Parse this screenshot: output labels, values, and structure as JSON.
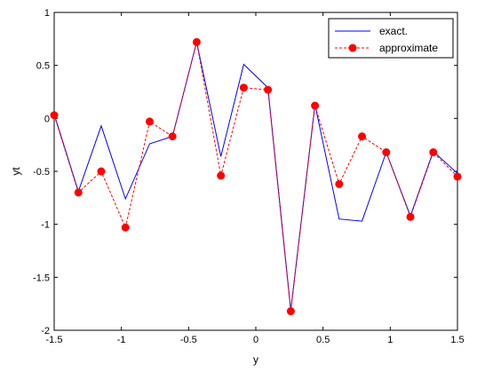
{
  "chart_data": {
    "type": "line",
    "xlabel": "y",
    "ylabel": "yt",
    "xlim": [
      -1.5,
      1.5
    ],
    "ylim": [
      -2,
      1
    ],
    "xticks": [
      -1.5,
      -1,
      -0.5,
      0,
      0.5,
      1,
      1.5
    ],
    "xtick_labels": [
      "-1.5",
      "-1",
      "-0.5",
      "0",
      "0.5",
      "1",
      "1.5"
    ],
    "yticks": [
      -2,
      -1.5,
      -1,
      -0.5,
      0,
      0.5,
      1
    ],
    "ytick_labels": [
      "-2",
      "-1.5",
      "-1",
      "-0.5",
      "0",
      "0.5",
      "1"
    ],
    "grid": false,
    "legend_position": "top-right",
    "series": [
      {
        "name": "exact.",
        "color": "#0000ff",
        "style": "solid",
        "marker": "none",
        "x": [
          -1.5,
          -1.32,
          -1.15,
          -0.97,
          -0.79,
          -0.62,
          -0.44,
          -0.26,
          -0.09,
          0.09,
          0.26,
          0.44,
          0.62,
          0.79,
          0.97,
          1.15,
          1.32,
          1.5
        ],
        "y": [
          0.04,
          -0.69,
          -0.07,
          -0.76,
          -0.24,
          -0.17,
          0.72,
          -0.36,
          0.51,
          0.29,
          -1.81,
          0.13,
          -0.95,
          -0.97,
          -0.32,
          -0.92,
          -0.31,
          -0.52
        ]
      },
      {
        "name": "approximate",
        "color": "#ff0000",
        "style": "dashed",
        "marker": "circle",
        "x": [
          -1.5,
          -1.32,
          -1.15,
          -0.97,
          -0.79,
          -0.62,
          -0.44,
          -0.26,
          -0.09,
          0.09,
          0.26,
          0.44,
          0.62,
          0.79,
          0.97,
          1.15,
          1.32,
          1.5
        ],
        "y": [
          0.03,
          -0.7,
          -0.5,
          -1.03,
          -0.03,
          -0.17,
          0.72,
          -0.54,
          0.29,
          0.27,
          -1.82,
          0.12,
          -0.62,
          -0.17,
          -0.32,
          -0.93,
          -0.32,
          -0.55
        ]
      }
    ]
  }
}
